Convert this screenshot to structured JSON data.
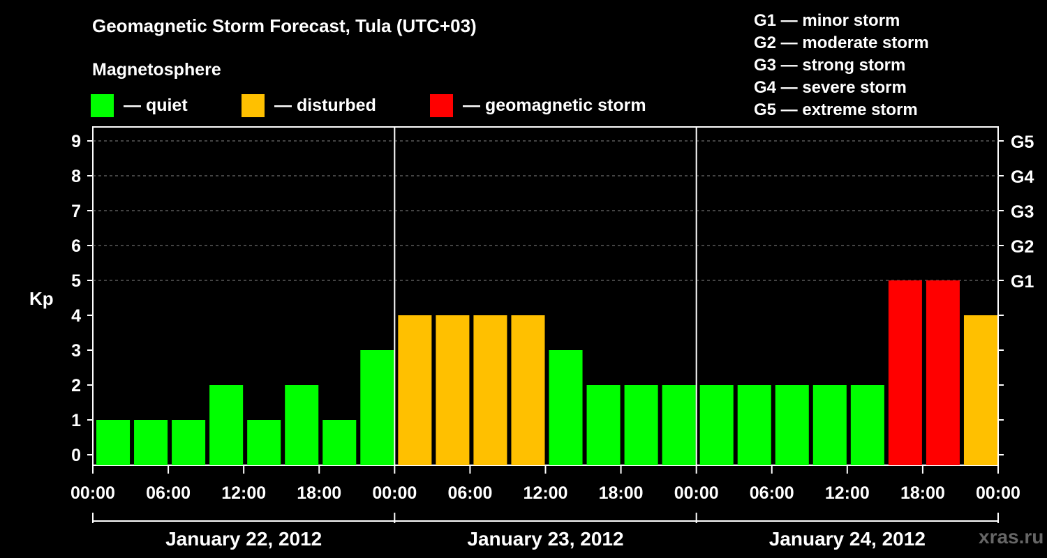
{
  "title": "Geomagnetic Storm Forecast, Tula (UTC+03)",
  "magnetosphere": {
    "title": "Magnetosphere",
    "legend": [
      {
        "label": "— quiet",
        "color": "#00ff00"
      },
      {
        "label": "— disturbed",
        "color": "#ffc000"
      },
      {
        "label": "— geomagnetic storm",
        "color": "#ff0000"
      }
    ]
  },
  "g_scale": [
    "G1 — minor storm",
    "G2 — moderate storm",
    "G3 — strong storm",
    "G4 — severe storm",
    "G5 — extreme storm"
  ],
  "watermark": "xras.ru",
  "colors": {
    "quiet": "#00ff00",
    "disturbed": "#ffc000",
    "storm": "#ff0000"
  },
  "chart_data": {
    "type": "bar",
    "ylabel": "Kp",
    "ylim": [
      0,
      9
    ],
    "yticks": [
      0,
      1,
      2,
      3,
      4,
      5,
      6,
      7,
      8,
      9
    ],
    "right_axis": [
      {
        "kp": 5,
        "label": "G1"
      },
      {
        "kp": 6,
        "label": "G2"
      },
      {
        "kp": 7,
        "label": "G3"
      },
      {
        "kp": 8,
        "label": "G4"
      },
      {
        "kp": 9,
        "label": "G5"
      }
    ],
    "x_tick_labels": [
      "00:00",
      "06:00",
      "12:00",
      "18:00",
      "00:00",
      "06:00",
      "12:00",
      "18:00",
      "00:00",
      "06:00",
      "12:00",
      "18:00",
      "00:00"
    ],
    "days": [
      "January 22, 2012",
      "January 23, 2012",
      "January 24, 2012"
    ],
    "grid": true,
    "values": [
      1,
      1,
      1,
      2,
      1,
      2,
      1,
      3,
      4,
      4,
      4,
      4,
      3,
      2,
      2,
      2,
      2,
      2,
      2,
      2,
      2,
      5,
      5,
      4
    ],
    "levels": [
      "quiet",
      "quiet",
      "quiet",
      "quiet",
      "quiet",
      "quiet",
      "quiet",
      "quiet",
      "disturbed",
      "disturbed",
      "disturbed",
      "disturbed",
      "quiet",
      "quiet",
      "quiet",
      "quiet",
      "quiet",
      "quiet",
      "quiet",
      "quiet",
      "quiet",
      "storm",
      "storm",
      "disturbed"
    ]
  }
}
